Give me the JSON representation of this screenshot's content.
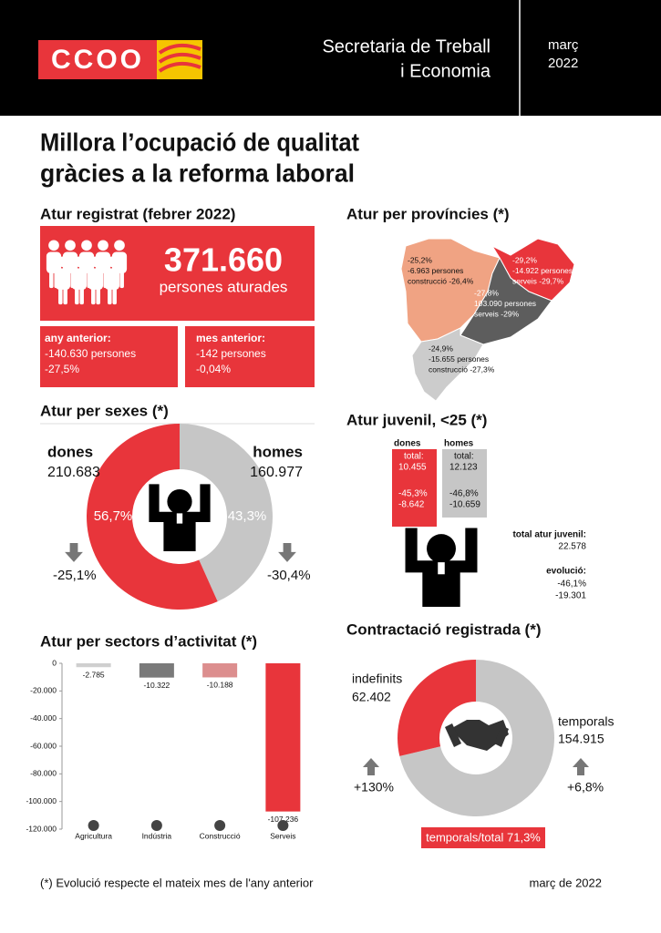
{
  "header": {
    "logo": "CCOO",
    "title_lines": [
      "Secretaria de Treball",
      "i Economia"
    ],
    "date_lines": [
      "març",
      "2022"
    ]
  },
  "headline": [
    "Millora l’ocupació de qualitat",
    "gràcies a la reforma laboral"
  ],
  "atur_registrat": {
    "title": "Atur registrat (febrer 2022)",
    "total": "371.660",
    "total_label": "persones aturades",
    "any_anterior": {
      "label": "any anterior:",
      "lines": [
        "-140.630 persones",
        "-27,5%"
      ]
    },
    "mes_anterior": {
      "label": "mes anterior:",
      "lines": [
        "-142 persones",
        "-0,04%"
      ]
    }
  },
  "provincies": {
    "title": "Atur per províncies (*)",
    "lleida": [
      "-25,2%",
      "-6.963 persones",
      "construcció -26,4%"
    ],
    "girona": [
      "-29,2%",
      "-14.922 persones",
      "serveis -29,7%"
    ],
    "barcelona": [
      "-27,8%",
      "103.090 persones",
      "serveis -29%"
    ],
    "tarragona": [
      "-24,9%",
      "-15.655 persones",
      "construcció -27,3%"
    ]
  },
  "sexes": {
    "title": "Atur per sexes (*)",
    "dones": {
      "label": "dones",
      "value": "210.683",
      "share": "56,7%",
      "change": "-25,1%"
    },
    "homes": {
      "label": "homes",
      "value": "160.977",
      "share": "43,3%",
      "change": "-30,4%"
    }
  },
  "sectors": {
    "title": "Atur per sectors d’activitat (*)",
    "chart": {
      "type": "bar",
      "categories": [
        "Agricultura",
        "Indústria",
        "Construcció",
        "Serveis"
      ],
      "values": [
        -2785,
        -10322,
        -10188,
        -107236
      ],
      "value_labels": [
        "-2.785",
        "-10.322",
        "-10.188",
        "-107.236"
      ],
      "colors": [
        "#cfcfcf",
        "#7a7a7a",
        "#dc8e8e",
        "#e8353b"
      ],
      "ylim": [
        -120000,
        0
      ],
      "yticks": [
        0,
        {
          "value": -20000,
          "label": "-20.000"
        },
        {
          "value": -40000,
          "label": "-40.000"
        },
        {
          "value": -60000,
          "label": "-60.000"
        },
        {
          "value": -80000,
          "label": "-80.000"
        },
        {
          "value": -100000,
          "label": "-100.000"
        },
        {
          "value": -120000,
          "label": "-120.000"
        }
      ]
    }
  },
  "juvenil": {
    "title": "Atur juvenil, <25 (*)",
    "dones": {
      "label": "dones",
      "total_label": "total:",
      "total": "10.455",
      "lines": [
        "-45,3%",
        "-8.642"
      ]
    },
    "homes": {
      "label": "homes",
      "total_label": "total:",
      "total": "12.123",
      "lines": [
        "-46,8%",
        "-10.659"
      ]
    },
    "total_label": "total atur juvenil:",
    "total": "22.578",
    "evolucio_label": "evolució:",
    "evolucio": [
      "-46,1%",
      "-19.301"
    ]
  },
  "contractacio": {
    "title": "Contractació registrada (*)",
    "indefinits": {
      "label": "indefinits",
      "value": "62.402",
      "change": "+130%"
    },
    "temporals": {
      "label": "temporals",
      "value": "154.915",
      "change": "+6,8%"
    },
    "ratio": "temporals/total 71,3%"
  },
  "footer": {
    "note": "(*) Evolució respecte el mateix mes de l'any anterior",
    "date": "març de 2022"
  }
}
